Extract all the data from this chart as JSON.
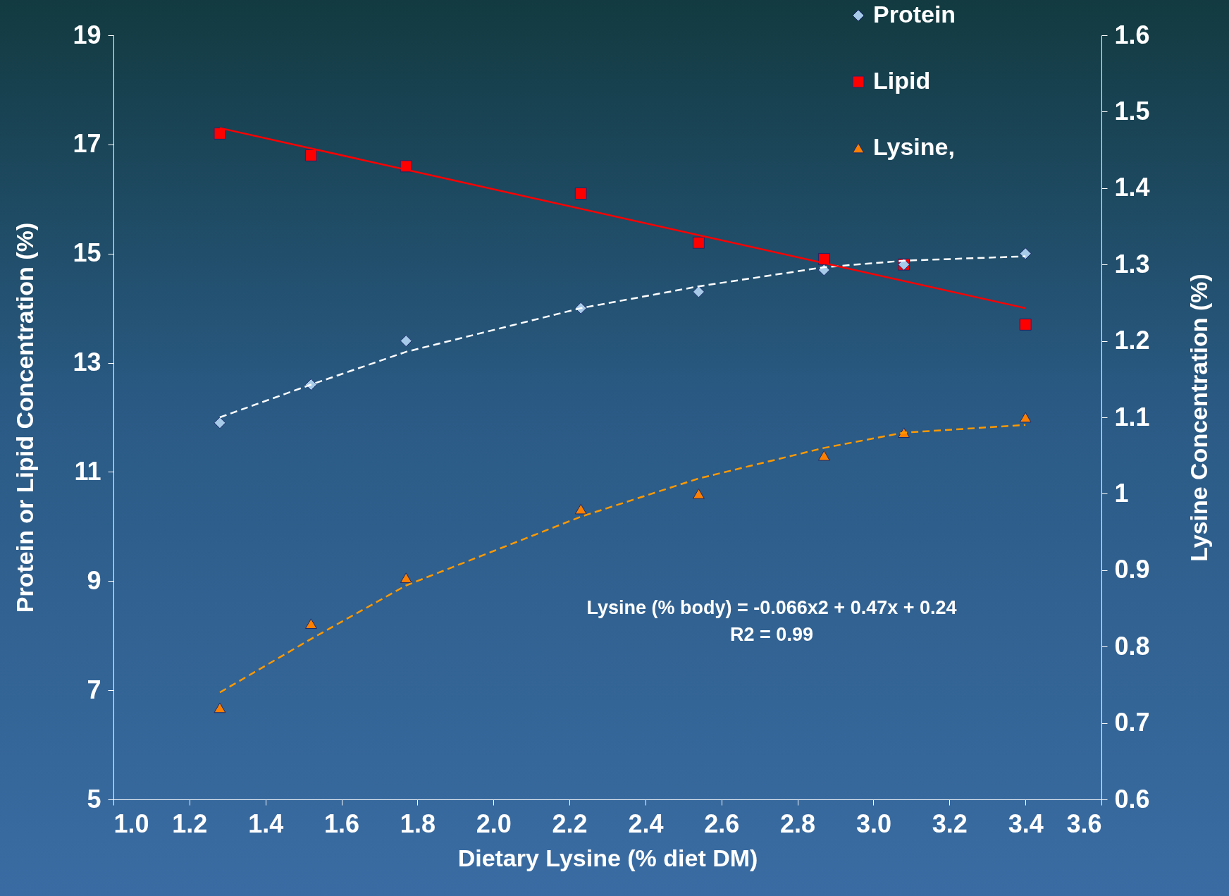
{
  "chart_data": {
    "type": "scatter",
    "xlabel": "Dietary Lysine (% diet DM)",
    "ylabel": "Protein or Lipid Concentration (%)",
    "y2label": "Lysine Concentration (%)",
    "xlim": [
      1.0,
      3.6
    ],
    "xticks": [
      {
        "value": 1,
        "label": "1.0"
      },
      1.2,
      1.4,
      1.6,
      1.8,
      {
        "value": 2,
        "label": "2.0"
      },
      2.2,
      2.4,
      2.6,
      2.8,
      {
        "value": 3,
        "label": "3.0"
      },
      3.2,
      3.4,
      3.6
    ],
    "ylim": [
      5,
      19
    ],
    "yticks": [
      5,
      7,
      9,
      11,
      13,
      15,
      17,
      19
    ],
    "y2lim": [
      0.6,
      1.6
    ],
    "y2ticks": [
      0.6,
      0.7,
      0.8,
      0.9,
      1,
      1.1,
      1.2,
      1.3,
      1.4,
      1.5,
      1.6
    ],
    "grid": false,
    "legend": "top right",
    "annotations": [
      "Lysine (% body) = -0.066x2 + 0.47x + 0.24",
      "R2 = 0.99"
    ],
    "series": [
      {
        "name": "Protein",
        "type": "scatter",
        "marker": "diamond",
        "color": "#a6cae8",
        "x": [
          1.28,
          1.52,
          1.77,
          2.23,
          2.54,
          2.87,
          3.08,
          3.4
        ],
        "values": [
          11.9,
          12.6,
          13.4,
          14.0,
          14.3,
          14.7,
          14.8,
          15.0
        ]
      },
      {
        "name": "Lipid",
        "type": "scatter",
        "marker": "square",
        "color": "#ff0000",
        "x": [
          1.28,
          1.52,
          1.77,
          2.23,
          2.54,
          2.87,
          3.08,
          3.4
        ],
        "values": [
          17.2,
          16.8,
          16.6,
          16.1,
          15.2,
          14.9,
          14.8,
          13.7
        ]
      },
      {
        "name": "Lysine,",
        "type": "scatter",
        "marker": "triangle",
        "axis": "y2",
        "color": "#ff8000",
        "x": [
          1.28,
          1.52,
          1.77,
          2.23,
          2.54,
          2.87,
          3.08,
          3.4
        ],
        "values": [
          0.72,
          0.83,
          0.89,
          0.98,
          1.0,
          1.05,
          1.08,
          1.1
        ]
      },
      {
        "type": "line",
        "line_style": "dashed",
        "color": "#ffffff",
        "x": [
          1.28,
          1.52,
          1.77,
          2.23,
          2.54,
          2.87,
          3.08,
          3.4
        ],
        "values": [
          12.0,
          12.6,
          13.2,
          14.0,
          14.4,
          14.75,
          14.87,
          14.95
        ]
      },
      {
        "type": "line",
        "line_style": "solid",
        "color": "#ff0000",
        "x": [
          1.28,
          3.4
        ],
        "values": [
          17.3,
          14.0
        ]
      },
      {
        "type": "line",
        "line_style": "dashed",
        "axis": "y2",
        "color": "#ff9900",
        "x": [
          1.28,
          1.52,
          1.77,
          2.23,
          2.54,
          2.87,
          3.08,
          3.4
        ],
        "values": [
          0.74,
          0.81,
          0.88,
          0.97,
          1.02,
          1.06,
          1.08,
          1.09
        ]
      }
    ]
  }
}
